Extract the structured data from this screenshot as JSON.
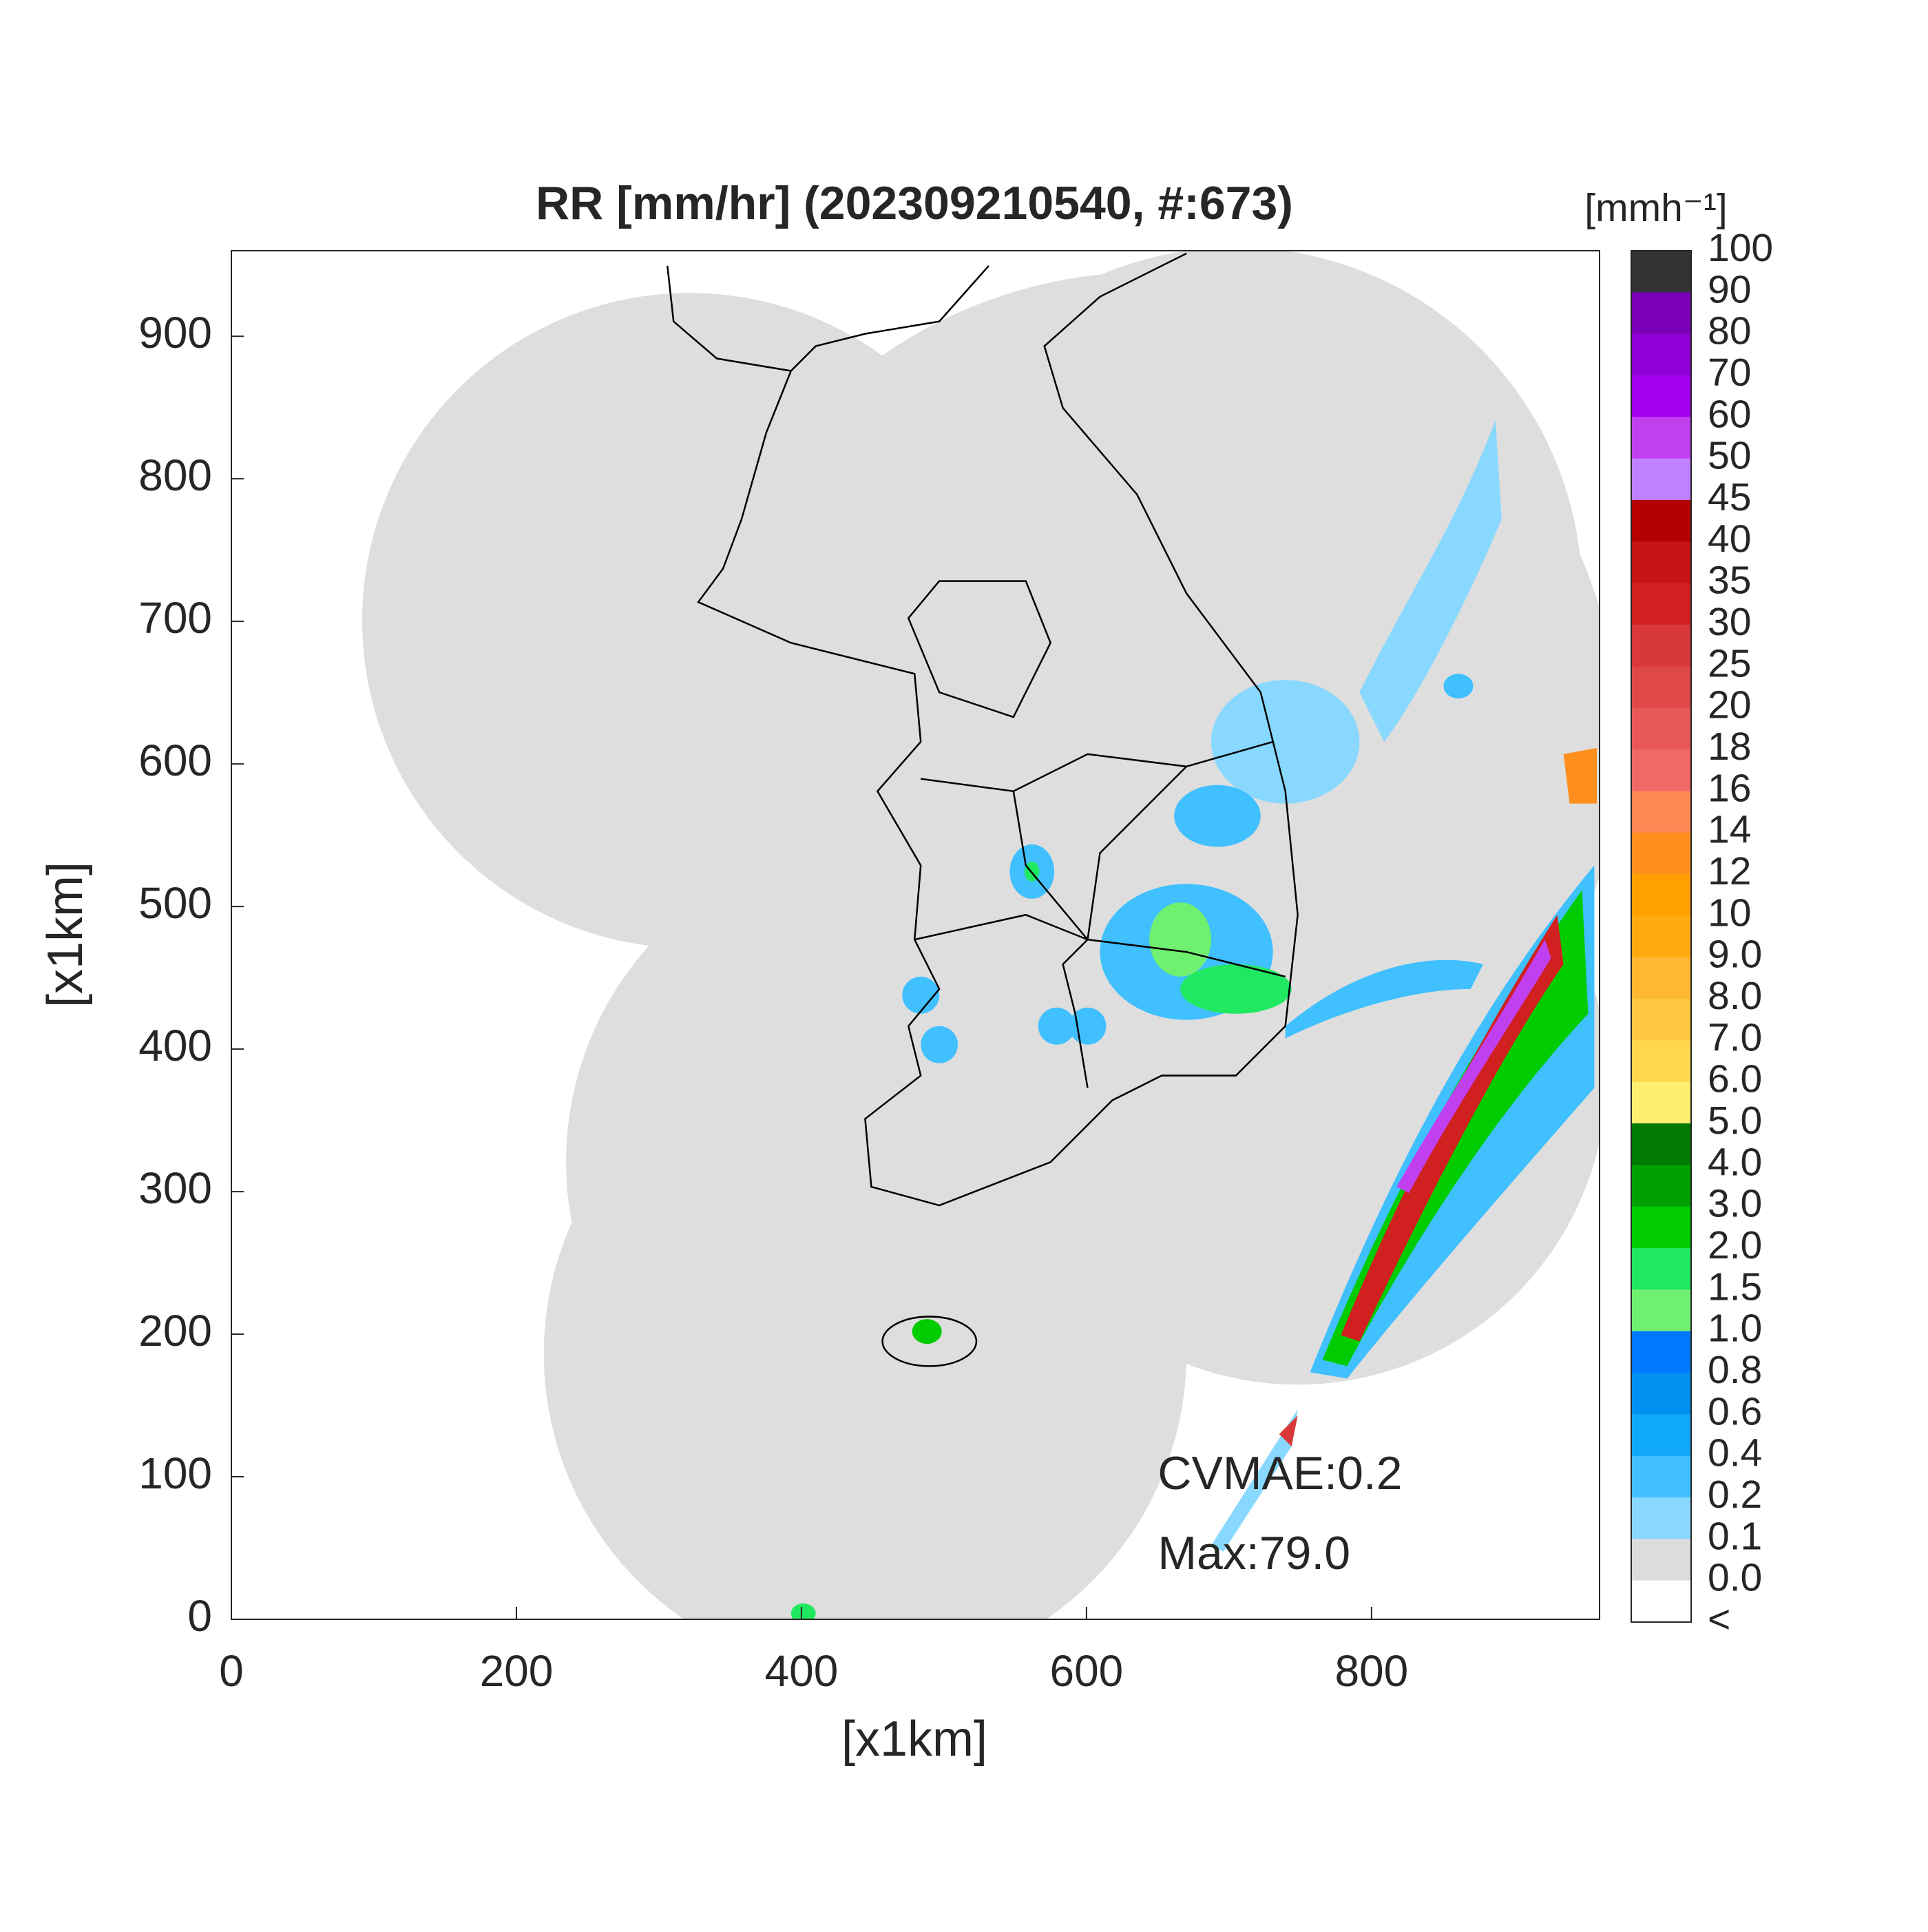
{
  "chart_data": {
    "type": "radar-map",
    "title": "RR [mm/hr] (202309210540, #:673)",
    "xlabel": "[x1km]",
    "ylabel": "[x1km]",
    "xlim": [
      0,
      960
    ],
    "ylim": [
      0,
      960
    ],
    "xticks": [
      0,
      200,
      400,
      600,
      800
    ],
    "yticks": [
      0,
      100,
      200,
      300,
      400,
      500,
      600,
      700,
      800,
      900
    ],
    "annotations": [
      {
        "text": "CVMAE:0.2",
        "x": 650,
        "y": 100
      },
      {
        "text": "Max:79.0",
        "x": 650,
        "y": 44
      }
    ],
    "colorbar": {
      "unit": "[mmh⁻¹]",
      "labels": [
        "100",
        "90",
        "80",
        "70",
        "60",
        "50",
        "45",
        "40",
        "35",
        "30",
        "25",
        "20",
        "18",
        "16",
        "14",
        "12",
        "10",
        "9.0",
        "8.0",
        "7.0",
        "6.0",
        "5.0",
        "4.0",
        "3.0",
        "2.0",
        "1.5",
        "1.0",
        "0.8",
        "0.6",
        "0.4",
        "0.2",
        "0.1",
        "0.0",
        "<"
      ],
      "colors": [
        "#333333",
        "#7a00b8",
        "#8f00d6",
        "#a300f0",
        "#c040f0",
        "#c080ff",
        "#b40000",
        "#c41414",
        "#d02020",
        "#d83838",
        "#e04848",
        "#e85858",
        "#f06868",
        "#ff8855",
        "#ff9020",
        "#ffa000",
        "#ffaa10",
        "#ffb830",
        "#ffc840",
        "#ffd850",
        "#ffee70",
        "#007a00",
        "#00a000",
        "#00cc00",
        "#20e860",
        "#70f070",
        "#0078ff",
        "#0090f0",
        "#10a8f8",
        "#40c0ff",
        "#88d8ff",
        "#dcdcdc",
        "#ffffff"
      ]
    }
  }
}
